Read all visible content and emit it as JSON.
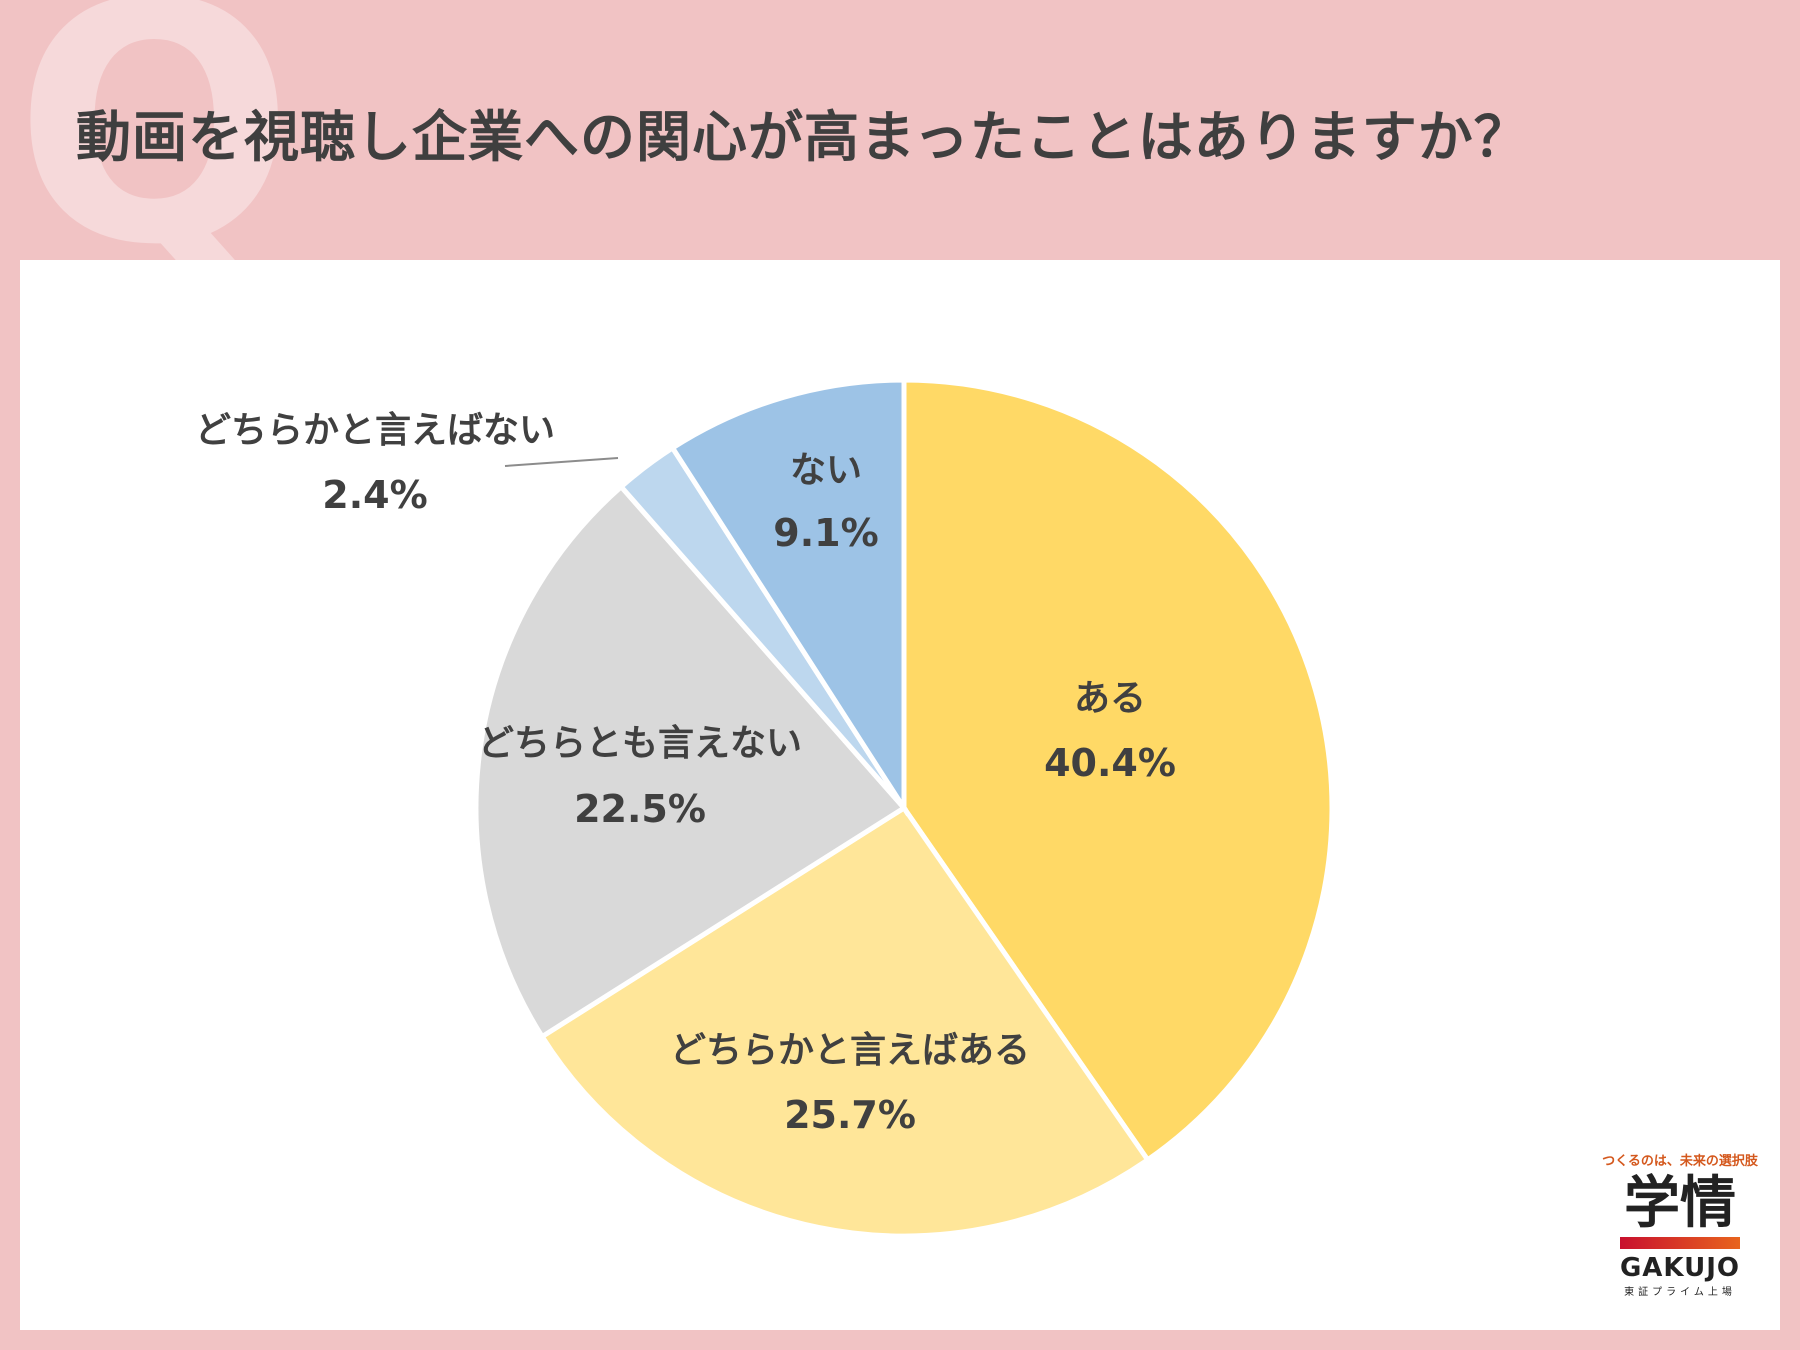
{
  "header": {
    "q_mark": "Q",
    "title": "動画を視聴し企業への関心が高まったことはありますか？"
  },
  "chart_data": {
    "type": "pie",
    "start": "top",
    "direction": "clockwise",
    "slices": [
      {
        "label": "ある",
        "value": 40.4,
        "display": "40.4%",
        "color": "#ffd966"
      },
      {
        "label": "どちらかと言えばある",
        "value": 25.7,
        "display": "25.7%",
        "color": "#ffe699"
      },
      {
        "label": "どちらとも言えない",
        "value": 22.5,
        "display": "22.5%",
        "color": "#d9d9d9"
      },
      {
        "label": "どちらかと言えばない",
        "value": 2.4,
        "display": "2.4%",
        "color": "#bdd7ee"
      },
      {
        "label": "ない",
        "value": 9.1,
        "display": "9.1%",
        "color": "#9dc3e6"
      }
    ]
  },
  "logo": {
    "tagline": "つくるのは、未来の選択肢",
    "kanji": "学情",
    "english": "GAKUJO",
    "sub": "東証プライム上場"
  }
}
